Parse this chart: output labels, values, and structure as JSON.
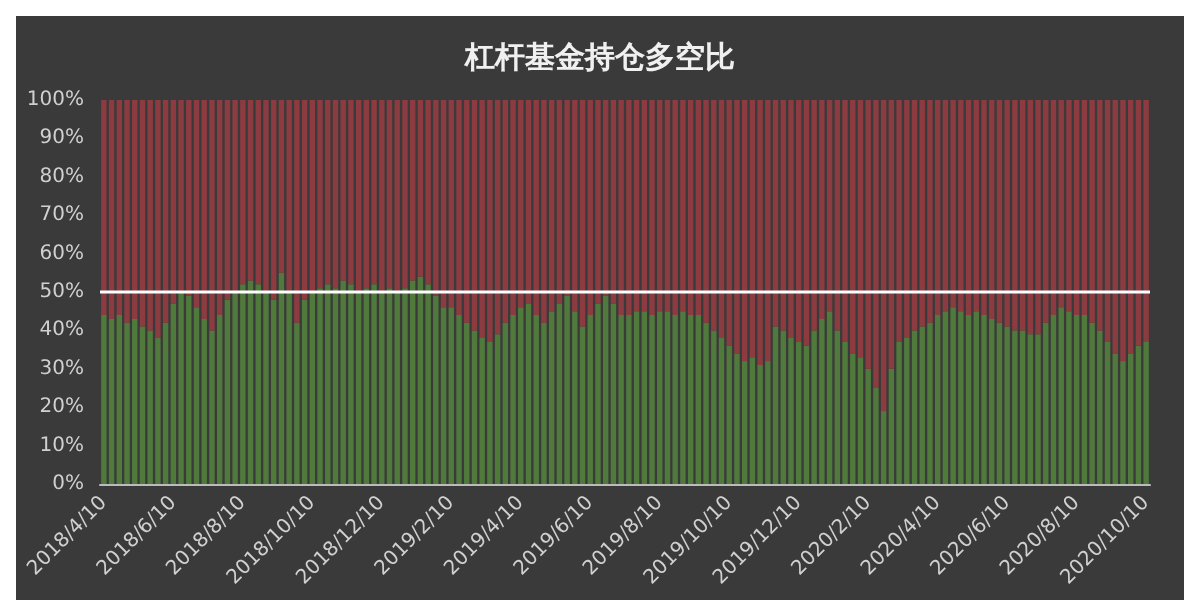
{
  "chart_data": {
    "type": "bar",
    "title": "杠杆基金持仓多空比",
    "stacked": true,
    "categories": [
      "2018/4/10",
      null,
      null,
      null,
      null,
      null,
      null,
      null,
      null,
      "2018/6/10",
      null,
      null,
      null,
      null,
      null,
      null,
      null,
      null,
      "2018/8/10",
      null,
      null,
      null,
      null,
      null,
      null,
      null,
      null,
      "2018/10/10",
      null,
      null,
      null,
      null,
      null,
      null,
      null,
      null,
      "2018/12/10",
      null,
      null,
      null,
      null,
      null,
      null,
      null,
      null,
      "2019/2/10",
      null,
      null,
      null,
      null,
      null,
      null,
      null,
      null,
      "2019/4/10",
      null,
      null,
      null,
      null,
      null,
      null,
      null,
      null,
      "2019/6/10",
      null,
      null,
      null,
      null,
      null,
      null,
      null,
      null,
      "2019/8/10",
      null,
      null,
      null,
      null,
      null,
      null,
      null,
      null,
      "2019/10/10",
      null,
      null,
      null,
      null,
      null,
      null,
      null,
      null,
      "2019/12/10",
      null,
      null,
      null,
      null,
      null,
      null,
      null,
      null,
      "2020/2/10",
      null,
      null,
      null,
      null,
      null,
      null,
      null,
      null,
      "2020/4/10",
      null,
      null,
      null,
      null,
      null,
      null,
      null,
      null,
      "2020/6/10",
      null,
      null,
      null,
      null,
      null,
      null,
      null,
      null,
      "2020/8/10",
      null,
      null,
      null,
      null,
      null,
      null,
      null,
      null,
      "2020/10/10"
    ],
    "series": [
      {
        "color": "#4f7a3c",
        "values": [
          44,
          43,
          44,
          42,
          43,
          41,
          40,
          38,
          42,
          47,
          50,
          49,
          46,
          43,
          40,
          44,
          48,
          50,
          52,
          53,
          52,
          50,
          48,
          55,
          50,
          42,
          48,
          50,
          51,
          52,
          51,
          53,
          52,
          50,
          51,
          52,
          50,
          51,
          50,
          51,
          53,
          54,
          52,
          49,
          46,
          46,
          44,
          42,
          40,
          38,
          37,
          39,
          42,
          44,
          46,
          47,
          44,
          42,
          45,
          47,
          49,
          45,
          41,
          44,
          47,
          49,
          47,
          44,
          44,
          45,
          45,
          44,
          45,
          45,
          44,
          45,
          44,
          44,
          42,
          40,
          38,
          36,
          34,
          32,
          33,
          31,
          32,
          41,
          40,
          38,
          37,
          36,
          40,
          43,
          45,
          40,
          37,
          34,
          33,
          30,
          25,
          19,
          30,
          37,
          38,
          40,
          41,
          42,
          44,
          45,
          46,
          45,
          44,
          45,
          44,
          43,
          42,
          41,
          40,
          40,
          39,
          39,
          42,
          44,
          46,
          45,
          44,
          44,
          42,
          40,
          37,
          34,
          32,
          34,
          36,
          37
        ]
      },
      {
        "color": "#8c3b40",
        "values": [
          56,
          57,
          56,
          58,
          57,
          59,
          60,
          62,
          58,
          53,
          50,
          51,
          54,
          57,
          60,
          56,
          52,
          50,
          48,
          47,
          48,
          50,
          52,
          45,
          50,
          58,
          52,
          50,
          49,
          48,
          49,
          47,
          48,
          50,
          49,
          48,
          50,
          49,
          50,
          49,
          47,
          46,
          48,
          51,
          54,
          54,
          56,
          58,
          60,
          62,
          63,
          61,
          58,
          56,
          54,
          53,
          56,
          58,
          55,
          53,
          51,
          55,
          59,
          56,
          53,
          51,
          53,
          56,
          56,
          55,
          55,
          56,
          55,
          55,
          56,
          55,
          56,
          56,
          58,
          60,
          62,
          64,
          66,
          68,
          67,
          69,
          68,
          59,
          60,
          62,
          63,
          64,
          60,
          57,
          55,
          60,
          63,
          66,
          67,
          70,
          75,
          81,
          70,
          63,
          62,
          60,
          59,
          58,
          56,
          55,
          54,
          55,
          56,
          55,
          56,
          57,
          58,
          59,
          60,
          60,
          61,
          61,
          58,
          56,
          54,
          55,
          56,
          56,
          58,
          60,
          63,
          66,
          68,
          66,
          64,
          63
        ]
      }
    ],
    "ylim": [
      0,
      100
    ],
    "yticks": [
      {
        "value": 0,
        "label": "0%"
      },
      {
        "value": 10,
        "label": "10%"
      },
      {
        "value": 20,
        "label": "20%"
      },
      {
        "value": 30,
        "label": "30%"
      },
      {
        "value": 40,
        "label": "40%"
      },
      {
        "value": 50,
        "label": "50%"
      },
      {
        "value": 60,
        "label": "60%"
      },
      {
        "value": 70,
        "label": "70%"
      },
      {
        "value": 80,
        "label": "80%"
      },
      {
        "value": 90,
        "label": "90%"
      },
      {
        "value": 100,
        "label": "100%"
      }
    ],
    "ref_lines": [
      {
        "axis": "y",
        "value": 50,
        "color": "#ffffff"
      }
    ]
  }
}
